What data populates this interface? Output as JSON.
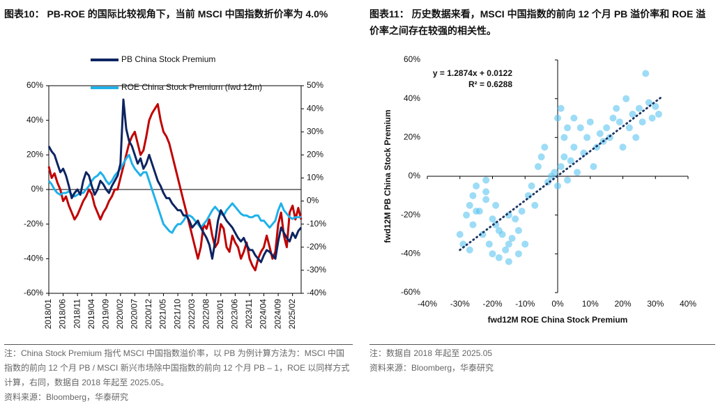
{
  "chart_data": [
    {
      "type": "line",
      "title": "图表10： PB-ROE 的国际比较视角下，当前 MSCI 中国指数折价率为 4.0%",
      "categories": [
        "2018/01",
        null,
        null,
        null,
        null,
        "2018/06",
        null,
        null,
        null,
        null,
        "2018/11",
        null,
        null,
        null,
        null,
        "2019/04",
        null,
        null,
        null,
        null,
        "2019/09",
        null,
        null,
        null,
        null,
        "2020/02",
        null,
        null,
        null,
        null,
        "2020/07",
        null,
        null,
        null,
        null,
        "2020/12",
        null,
        null,
        null,
        null,
        "2021/05",
        null,
        null,
        null,
        null,
        "2021/10",
        null,
        null,
        null,
        null,
        "2022/03",
        null,
        null,
        null,
        null,
        "2022/08",
        null,
        null,
        null,
        null,
        "2023/01",
        null,
        null,
        null,
        null,
        "2023/06",
        null,
        null,
        null,
        null,
        "2023/11",
        null,
        null,
        null,
        null,
        "2024/04",
        null,
        null,
        null,
        null,
        "2024/09",
        null,
        null,
        null,
        null,
        "2025/02",
        null,
        null,
        null
      ],
      "series": [
        {
          "color": "#c00000",
          "axis": "y2",
          "values": [
            15,
            10,
            12,
            8,
            5,
            0,
            2,
            -2,
            -5,
            -8,
            -6,
            -3,
            0,
            2,
            5,
            3,
            -2,
            -5,
            -8,
            -5,
            -3,
            0,
            2,
            5,
            5,
            10,
            15,
            20,
            25,
            28,
            30,
            25,
            20,
            22,
            28,
            35,
            38,
            40,
            42,
            35,
            30,
            28,
            25,
            20,
            15,
            10,
            5,
            0,
            -5,
            -10,
            -15,
            -20,
            -25,
            -20,
            -10,
            -12,
            -8,
            -15,
            -20,
            -18,
            -10,
            -12,
            -20,
            -22,
            -15,
            -18,
            -20,
            -25,
            -22,
            -18,
            -25,
            -28,
            -30,
            -25,
            -22,
            -20,
            -15,
            -20,
            -25,
            -22,
            -10,
            -5,
            -15,
            -20,
            -5,
            -2,
            -8,
            -3,
            -8
          ]
        },
        {
          "name": "ROE China Stock Premium (fwd 12m)",
          "color": "#1fb1ea",
          "values": [
            5,
            3,
            0,
            -2,
            -3,
            -2,
            -2,
            -1,
            -3,
            -4,
            -3,
            -2,
            -2,
            0,
            2,
            5,
            7,
            8,
            10,
            8,
            5,
            3,
            5,
            8,
            10,
            12,
            15,
            18,
            20,
            15,
            12,
            10,
            8,
            10,
            10,
            5,
            0,
            -5,
            -10,
            -15,
            -20,
            -22,
            -24,
            -25,
            -22,
            -20,
            -20,
            -18,
            -15,
            -15,
            -16,
            -18,
            -20,
            -22,
            -20,
            -18,
            -15,
            -12,
            -10,
            -12,
            -14,
            -15,
            -12,
            -10,
            -8,
            -10,
            -12,
            -14,
            -15,
            -15,
            -16,
            -16,
            -15,
            -15,
            -18,
            -18,
            -20,
            -22,
            -20,
            -18,
            -12,
            -8,
            -12,
            -14,
            -16,
            -17,
            -16,
            -16,
            -16
          ]
        },
        {
          "name": "PB China Stock Premium",
          "color": "#0c2461",
          "values": [
            25,
            22,
            20,
            15,
            10,
            12,
            8,
            2,
            -5,
            -2,
            0,
            -3,
            5,
            10,
            8,
            2,
            -3,
            0,
            5,
            3,
            0,
            -2,
            2,
            5,
            8,
            15,
            52,
            35,
            28,
            25,
            20,
            15,
            18,
            12,
            15,
            20,
            15,
            10,
            5,
            2,
            -2,
            -5,
            -5,
            -8,
            -10,
            -12,
            -12,
            -15,
            -15,
            -18,
            -22,
            -20,
            -18,
            -22,
            -25,
            -28,
            -32,
            -40,
            -30,
            -18,
            -12,
            -15,
            -18,
            -20,
            -22,
            -25,
            -28,
            -30,
            -28,
            -32,
            -35,
            -35,
            -38,
            -40,
            -42,
            -38,
            -35,
            -36,
            -38,
            -40,
            -30,
            -22,
            -25,
            -28,
            -30,
            -25,
            -28,
            -24,
            -22
          ]
        }
      ],
      "ylim": [
        -60,
        60
      ],
      "yticks": [
        {
          "value": -60,
          "label": "-60%"
        },
        {
          "value": -40,
          "label": "-40%"
        },
        {
          "value": -20,
          "label": "-20%"
        },
        {
          "value": 0,
          "label": "0%"
        },
        {
          "value": 20,
          "label": "20%"
        },
        {
          "value": 40,
          "label": "40%"
        },
        {
          "value": 60,
          "label": "60%"
        }
      ],
      "y2lim": [
        -40,
        50
      ],
      "y2ticks": [
        {
          "value": -40,
          "label": "-40%"
        },
        {
          "value": -30,
          "label": "-30%"
        },
        {
          "value": -20,
          "label": "-20%"
        },
        {
          "value": -10,
          "label": "-10%"
        },
        {
          "value": 0,
          "label": "0%"
        },
        {
          "value": 10,
          "label": "10%"
        },
        {
          "value": 20,
          "label": "20%"
        },
        {
          "value": 30,
          "label": "30%"
        },
        {
          "value": 40,
          "label": "40%"
        },
        {
          "value": 50,
          "label": "50%"
        }
      ],
      "notes": [
        "注：China Stock Premium 指代 MSCI 中国指数溢价率，以 PB 为例计算方法为：MSCI 中国指数的前向 12 个月 PB / MSCI 新兴市场除中国指数的前向 12 个月 PB – 1，ROE 以同样方式计算，右同，数据自 2018 年起至 2025.05。",
        "资料来源：Bloomberg，华泰研究"
      ]
    },
    {
      "type": "scatter",
      "title": "图表11： 历史数据来看，MSCI 中国指数的前向 12 个月 PB 溢价率和 ROE 溢价率之间存在较强的相关性。",
      "x_label": "fwd12M ROE China Stock Premium",
      "y_label": "fwd12M PB China Stock Premium",
      "annotations": [
        "y = 1.2874x + 0.0122",
        "R² = 0.6288"
      ],
      "color": "#5bc4f0",
      "x": [
        -30,
        -29,
        -28,
        -27,
        -26,
        -26,
        -25,
        -24,
        -23,
        -22,
        -22,
        -21,
        -20,
        -19,
        -19,
        -18,
        -17,
        -16,
        -15,
        -15,
        -14,
        -13,
        -12,
        -11,
        -10,
        -9,
        -8,
        -7,
        -6,
        -5,
        -4,
        -3,
        -2,
        -1,
        0,
        0,
        1,
        1,
        2,
        2,
        3,
        3,
        4,
        5,
        5,
        6,
        7,
        8,
        9,
        10,
        11,
        12,
        13,
        14,
        15,
        16,
        17,
        18,
        19,
        20,
        21,
        22,
        23,
        24,
        25,
        26,
        27,
        28,
        29,
        30,
        31,
        -25,
        -22,
        -18,
        -15,
        -12,
        -20,
        -27
      ],
      "values": [
        -30,
        -35,
        -20,
        -15,
        -25,
        -10,
        -5,
        -18,
        -30,
        -12,
        -2,
        -35,
        -40,
        -25,
        -15,
        -42,
        -30,
        -38,
        -44,
        -20,
        -32,
        -22,
        -28,
        -18,
        -35,
        -10,
        -5,
        -15,
        5,
        10,
        15,
        -3,
        0,
        2,
        -5,
        30,
        5,
        35,
        10,
        20,
        -2,
        25,
        8,
        15,
        30,
        2,
        25,
        12,
        20,
        28,
        5,
        15,
        22,
        18,
        25,
        20,
        30,
        35,
        28,
        15,
        40,
        25,
        32,
        20,
        35,
        28,
        53,
        38,
        30,
        36,
        32,
        -18,
        -8,
        -28,
        -35,
        -40,
        -22,
        -38
      ],
      "trendline": {
        "x": [
          -30,
          32
        ],
        "values": [
          -38,
          41
        ],
        "color": "#1f3864"
      },
      "xlim": [
        -40,
        40
      ],
      "xticks": [
        {
          "value": -40,
          "label": "-40%"
        },
        {
          "value": -30,
          "label": "-30%"
        },
        {
          "value": -20,
          "label": "-20%"
        },
        {
          "value": -10,
          "label": "-10%"
        },
        {
          "value": 0,
          "label": "0%"
        },
        {
          "value": 10,
          "label": "10%"
        },
        {
          "value": 20,
          "label": "20%"
        },
        {
          "value": 30,
          "label": "30%"
        },
        {
          "value": 40,
          "label": "40%"
        }
      ],
      "ylim": [
        -60,
        60
      ],
      "yticks": [
        {
          "value": -60,
          "label": "-60%"
        },
        {
          "value": -40,
          "label": "-40%"
        },
        {
          "value": -20,
          "label": "-20%"
        },
        {
          "value": 0,
          "label": "0%"
        },
        {
          "value": 20,
          "label": "20%"
        },
        {
          "value": 40,
          "label": "40%"
        },
        {
          "value": 60,
          "label": "60%"
        }
      ],
      "notes": [
        "注：数据自 2018 年起至 2025.05",
        "资料来源：Bloomberg，华泰研究"
      ]
    }
  ]
}
